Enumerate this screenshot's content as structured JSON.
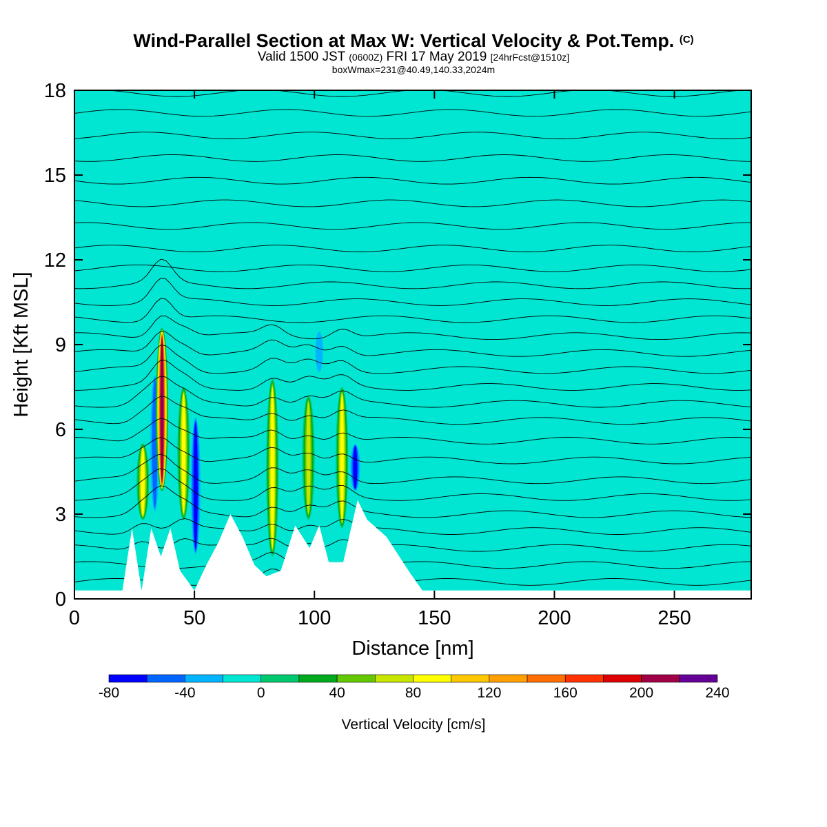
{
  "title": {
    "main": "Wind-Parallel Section at Max W: Vertical Velocity & Pot.Temp.",
    "copyright": "(C)",
    "valid_prefix": "Valid 1500 JST",
    "valid_utc": "(0600Z)",
    "valid_date": "FRI 17 May 2019",
    "forecast": "[24hrFcst@1510z]",
    "boxwmax": "boxWmax=231@40.49,140.33,2024m"
  },
  "chart_data": {
    "type": "heatmap",
    "xlabel": "Distance [nm]",
    "ylabel": "Height [Kft MSL]",
    "xlim": [
      0,
      282
    ],
    "ylim": [
      0,
      18
    ],
    "x_ticks": [
      0,
      50,
      100,
      150,
      200,
      250
    ],
    "y_ticks": [
      0,
      3,
      6,
      9,
      12,
      15,
      18
    ],
    "background_value_range": [
      0,
      20
    ],
    "colorbar": {
      "label": "Vertical Velocity [cm/s]",
      "tick_labels": [
        -80,
        -40,
        0,
        40,
        80,
        120,
        160,
        200,
        240
      ],
      "bins": [
        {
          "from": -80,
          "to": -60,
          "color": "#0000ff"
        },
        {
          "from": -60,
          "to": -40,
          "color": "#0064ff"
        },
        {
          "from": -40,
          "to": -20,
          "color": "#00b4ff"
        },
        {
          "from": -20,
          "to": 0,
          "color": "#00e6d2"
        },
        {
          "from": 0,
          "to": 20,
          "color": "#00c86e"
        },
        {
          "from": 20,
          "to": 40,
          "color": "#00aa1e"
        },
        {
          "from": 40,
          "to": 60,
          "color": "#64c800"
        },
        {
          "from": 60,
          "to": 80,
          "color": "#c8e600"
        },
        {
          "from": 80,
          "to": 100,
          "color": "#ffff00"
        },
        {
          "from": 100,
          "to": 120,
          "color": "#ffc800"
        },
        {
          "from": 120,
          "to": 140,
          "color": "#ffa000"
        },
        {
          "from": 140,
          "to": 160,
          "color": "#ff6e00"
        },
        {
          "from": 160,
          "to": 180,
          "color": "#ff3200"
        },
        {
          "from": 180,
          "to": 200,
          "color": "#dc0000"
        },
        {
          "from": 200,
          "to": 220,
          "color": "#a00046"
        },
        {
          "from": 220,
          "to": 240,
          "color": "#640096"
        }
      ]
    },
    "terrain_profile_kft": [
      [
        0,
        0.3
      ],
      [
        20,
        0.3
      ],
      [
        24,
        2.5
      ],
      [
        28,
        0.3
      ],
      [
        32,
        2.5
      ],
      [
        36,
        1.5
      ],
      [
        40,
        2.5
      ],
      [
        44,
        1.0
      ],
      [
        50,
        0.3
      ],
      [
        55,
        1.2
      ],
      [
        60,
        2.0
      ],
      [
        65,
        3.0
      ],
      [
        70,
        2.2
      ],
      [
        75,
        1.2
      ],
      [
        80,
        0.8
      ],
      [
        86,
        1.0
      ],
      [
        92,
        2.6
      ],
      [
        98,
        1.8
      ],
      [
        102,
        2.6
      ],
      [
        106,
        1.3
      ],
      [
        112,
        1.3
      ],
      [
        118,
        3.5
      ],
      [
        122,
        2.8
      ],
      [
        130,
        2.2
      ],
      [
        140,
        0.9
      ],
      [
        145,
        0.3
      ],
      [
        282,
        0.3
      ]
    ],
    "updraft_cores": [
      {
        "x": 28.5,
        "y_bottom": 2.8,
        "y_top": 5.5,
        "w_max": 100
      },
      {
        "x": 36.5,
        "y_bottom": 3.8,
        "y_top": 9.6,
        "w_max": 231
      },
      {
        "x": 45.5,
        "y_bottom": 2.8,
        "y_top": 7.5,
        "w_max": 100
      },
      {
        "x": 82.5,
        "y_bottom": 1.5,
        "y_top": 7.8,
        "w_max": 100
      },
      {
        "x": 97.5,
        "y_bottom": 2.8,
        "y_top": 7.2,
        "w_max": 80
      },
      {
        "x": 111.5,
        "y_bottom": 2.5,
        "y_top": 7.5,
        "w_max": 100
      }
    ],
    "downdraft_cores": [
      {
        "x": 33.5,
        "y_bottom": 3.0,
        "y_top": 8.0,
        "w_min": -60
      },
      {
        "x": 50.5,
        "y_bottom": 1.5,
        "y_top": 6.5,
        "w_min": -80
      },
      {
        "x": 102,
        "y_bottom": 8.0,
        "y_top": 9.5,
        "w_min": -40
      },
      {
        "x": 117,
        "y_bottom": 3.8,
        "y_top": 5.5,
        "w_min": -80
      }
    ],
    "potential_temperature_isentropes_kft": [
      0.6,
      1.2,
      1.8,
      2.4,
      3.0,
      3.6,
      4.2,
      4.9,
      5.6,
      6.3,
      6.9,
      7.5,
      8.1,
      8.7,
      9.3,
      9.9,
      10.5,
      11.1,
      11.7,
      12.4,
      13.2,
      14.0,
      14.8,
      15.6,
      16.4,
      17.2,
      17.9
    ]
  }
}
